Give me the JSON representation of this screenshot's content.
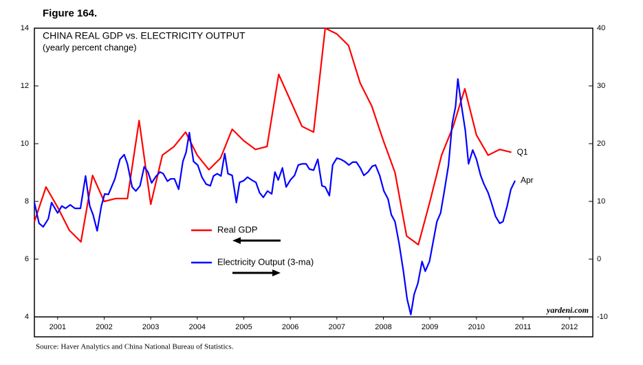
{
  "chart_data": {
    "type": "line",
    "figure_label": "Figure 164.",
    "title": "CHINA REAL GDP vs. ELECTRICITY OUTPUT",
    "subtitle": "(yearly percent change)",
    "source": "Source: Haver Analytics and China National Bureau of Statistics.",
    "watermark": "yardeni.com",
    "xlim": [
      2001,
      2013
    ],
    "xticks": [
      {
        "value": 2001.5,
        "label": "2001"
      },
      {
        "value": 2002.5,
        "label": "2002"
      },
      {
        "value": 2003.5,
        "label": "2003"
      },
      {
        "value": 2004.5,
        "label": "2004"
      },
      {
        "value": 2005.5,
        "label": "2005"
      },
      {
        "value": 2006.5,
        "label": "2006"
      },
      {
        "value": 2007.5,
        "label": "2007"
      },
      {
        "value": 2008.5,
        "label": "2008"
      },
      {
        "value": 2009.5,
        "label": "2009"
      },
      {
        "value": 2010.5,
        "label": "2010"
      },
      {
        "value": 2011.5,
        "label": "2011"
      },
      {
        "value": 2012.5,
        "label": "2012"
      }
    ],
    "ylim": [
      4,
      14
    ],
    "yticks": [
      4,
      6,
      8,
      10,
      12,
      14
    ],
    "y2lim": [
      -10,
      40
    ],
    "y2ticks": [
      -10,
      0,
      10,
      20,
      30,
      40
    ],
    "series": [
      {
        "name": "Real GDP",
        "color": "#ff0000",
        "axis": "y",
        "end_label": "Q1",
        "x": [
          2001.0,
          2001.25,
          2001.5,
          2001.75,
          2002.0,
          2002.25,
          2002.5,
          2002.75,
          2003.0,
          2003.25,
          2003.5,
          2003.75,
          2004.0,
          2004.25,
          2004.5,
          2004.75,
          2005.0,
          2005.25,
          2005.5,
          2005.75,
          2006.0,
          2006.25,
          2006.5,
          2006.75,
          2007.0,
          2007.25,
          2007.5,
          2007.75,
          2008.0,
          2008.25,
          2008.5,
          2008.75,
          2009.0,
          2009.25,
          2009.5,
          2009.75,
          2010.0,
          2010.25,
          2010.5,
          2010.75,
          2011.0,
          2011.25
        ],
        "values": [
          7.3,
          8.5,
          7.8,
          7.0,
          6.6,
          8.9,
          8.0,
          8.1,
          8.1,
          10.8,
          7.9,
          9.6,
          9.9,
          10.4,
          9.6,
          9.1,
          9.5,
          10.5,
          10.1,
          9.8,
          9.9,
          12.4,
          11.5,
          10.6,
          10.4,
          14.0,
          13.8,
          13.4,
          12.1,
          11.3,
          10.1,
          9.0,
          6.8,
          6.5,
          8.0,
          9.6,
          10.6,
          11.9,
          10.3,
          9.6,
          9.8,
          9.7
        ]
      },
      {
        "name": "Electricity Output (3-ma)",
        "color": "#0000ff",
        "axis": "y2",
        "end_label": "Apr",
        "x": [
          2001.0,
          2001.1,
          2001.19,
          2001.3,
          2001.37,
          2001.5,
          2001.59,
          2001.67,
          2001.77,
          2001.87,
          2001.99,
          2002.1,
          2002.19,
          2002.26,
          2002.35,
          2002.44,
          2002.51,
          2002.59,
          2002.73,
          2002.84,
          2002.93,
          2003.0,
          2003.1,
          2003.18,
          2003.27,
          2003.36,
          2003.44,
          2003.52,
          2003.61,
          2003.7,
          2003.77,
          2003.86,
          2003.93,
          2004.01,
          2004.1,
          2004.19,
          2004.26,
          2004.33,
          2004.42,
          2004.51,
          2004.6,
          2004.69,
          2004.78,
          2004.85,
          2004.93,
          2005.01,
          2005.09,
          2005.16,
          2005.25,
          2005.34,
          2005.41,
          2005.5,
          2005.58,
          2005.67,
          2005.76,
          2005.84,
          2005.92,
          2006.01,
          2006.1,
          2006.17,
          2006.24,
          2006.33,
          2006.41,
          2006.5,
          2006.59,
          2006.67,
          2006.75,
          2006.84,
          2006.91,
          2007.0,
          2007.09,
          2007.18,
          2007.25,
          2007.34,
          2007.41,
          2007.5,
          2007.58,
          2007.67,
          2007.76,
          2007.84,
          2007.92,
          2008.01,
          2008.08,
          2008.17,
          2008.26,
          2008.33,
          2008.42,
          2008.51,
          2008.6,
          2008.67,
          2008.75,
          2008.84,
          2008.93,
          2009.01,
          2009.09,
          2009.16,
          2009.24,
          2009.33,
          2009.4,
          2009.49,
          2009.56,
          2009.65,
          2009.73,
          2009.81,
          2009.9,
          2009.98,
          2010.05,
          2010.1,
          2010.17,
          2010.26,
          2010.33,
          2010.42,
          2010.5,
          2010.59,
          2010.66,
          2010.75,
          2010.82,
          2010.91,
          2011.0,
          2011.07,
          2011.16,
          2011.24,
          2011.33
        ],
        "values": [
          9.8,
          6.2,
          5.6,
          7.0,
          9.8,
          8.0,
          9.2,
          8.8,
          9.4,
          8.8,
          8.8,
          14.4,
          9.2,
          7.7,
          4.9,
          9.2,
          11.3,
          11.2,
          13.9,
          17.3,
          18.1,
          16.5,
          12.5,
          11.8,
          12.7,
          16.0,
          15.1,
          13.2,
          14.3,
          15.1,
          14.8,
          13.5,
          13.9,
          13.9,
          12.1,
          16.9,
          18.5,
          21.9,
          16.9,
          16.3,
          14.2,
          13.0,
          12.7,
          14.4,
          14.8,
          14.4,
          18.3,
          14.8,
          14.5,
          9.8,
          13.3,
          13.6,
          14.2,
          13.7,
          13.3,
          11.5,
          10.7,
          11.8,
          11.3,
          15.1,
          13.7,
          15.8,
          12.5,
          13.7,
          14.5,
          16.3,
          16.5,
          16.5,
          15.6,
          15.4,
          17.3,
          12.7,
          12.5,
          11.0,
          16.3,
          17.5,
          17.3,
          16.9,
          16.3,
          16.8,
          16.8,
          15.7,
          14.5,
          15.1,
          16.1,
          16.3,
          14.5,
          11.8,
          10.4,
          7.7,
          6.5,
          2.6,
          -2.1,
          -6.9,
          -9.6,
          -6.1,
          -4.2,
          -0.4,
          -2.1,
          -0.4,
          2.6,
          6.5,
          8.0,
          11.8,
          16.3,
          23.5,
          26.4,
          31.2,
          27.0,
          22.3,
          16.5,
          18.9,
          17.3,
          14.5,
          13.0,
          11.5,
          9.8,
          7.4,
          6.2,
          6.5,
          9.2,
          12.1,
          13.6
        ]
      }
    ]
  }
}
